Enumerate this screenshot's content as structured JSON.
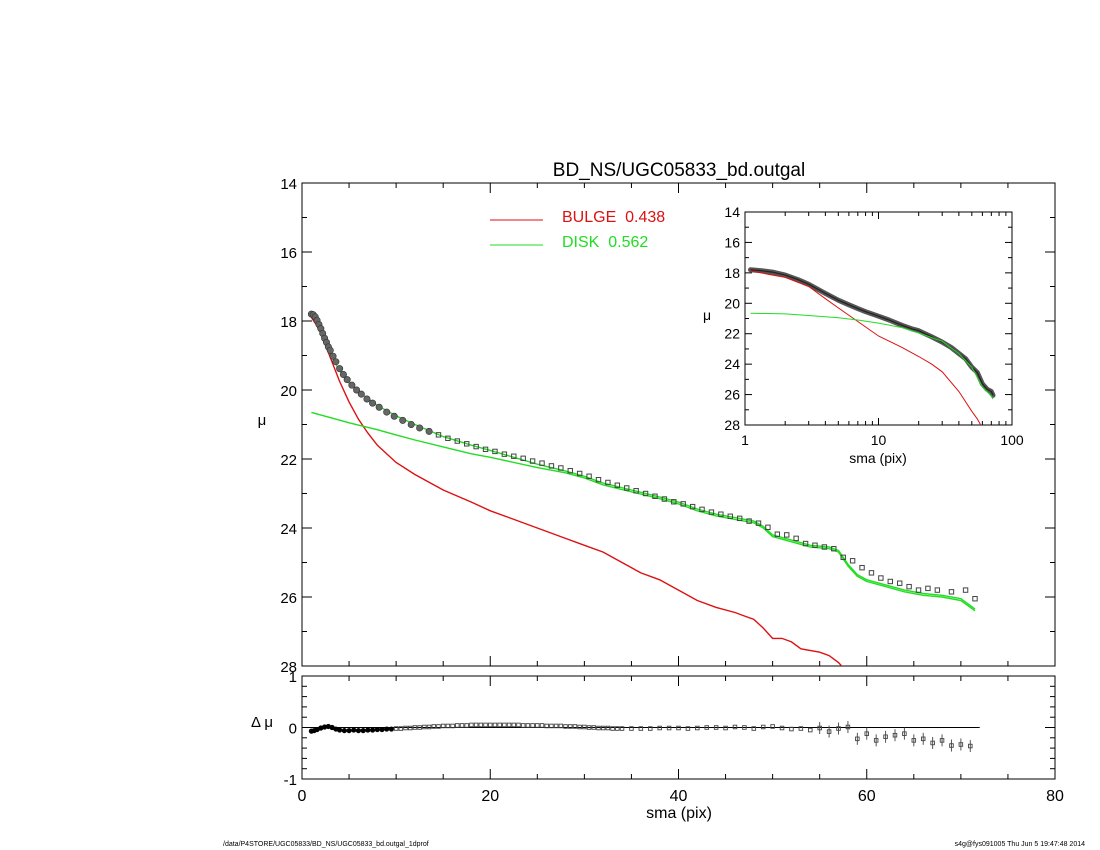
{
  "footer": {
    "left": "/data/P4STORE/UGC05833/BD_NS/UGC05833_bd.outgal_1dprof",
    "right": "s4g@fys091005  Thu Jun  5 19:47:48 2014"
  },
  "colors": {
    "data": "#555555",
    "bulge": "#dd1111",
    "disk": "#22dd22",
    "axis": "#000000"
  },
  "chart_data": [
    {
      "id": "main",
      "type": "scatter",
      "title": "BD_NS/UGC05833_bd.outgal",
      "xlabel": "",
      "ylabel": "μ",
      "xlim": [
        0,
        80
      ],
      "ylim": [
        28,
        14
      ],
      "y_reversed": true,
      "xticks": [
        "0",
        "20",
        "40",
        "60",
        "80"
      ],
      "yticks": [
        "14",
        "16",
        "18",
        "20",
        "22",
        "24",
        "26",
        "28"
      ],
      "legend_position": "top-center",
      "legend": [
        {
          "label": "BULGE  0.438",
          "color": "#dd1111"
        },
        {
          "label": "DISK  0.562",
          "color": "#22dd22"
        }
      ],
      "series": [
        {
          "name": "BULGE  0.438",
          "type": "line",
          "color": "#dd1111",
          "x": [
            1,
            1.5,
            2,
            2.5,
            3,
            4,
            5,
            6,
            7,
            8,
            10,
            12,
            15,
            18,
            20,
            22,
            25,
            28,
            30,
            32,
            34,
            36,
            38,
            40,
            42,
            44,
            46,
            47,
            48,
            49,
            50,
            51,
            52,
            53,
            55,
            56,
            57,
            58
          ],
          "y": [
            17.9,
            18.1,
            18.35,
            18.7,
            19.05,
            19.75,
            20.35,
            20.85,
            21.25,
            21.6,
            22.1,
            22.45,
            22.9,
            23.25,
            23.5,
            23.7,
            24.0,
            24.3,
            24.5,
            24.7,
            25.0,
            25.3,
            25.5,
            25.8,
            26.1,
            26.3,
            26.45,
            26.55,
            26.65,
            26.9,
            27.2,
            27.2,
            27.3,
            27.5,
            27.6,
            27.7,
            27.9,
            28.2
          ]
        },
        {
          "name": "DISK  0.562",
          "type": "line",
          "color": "#22dd22",
          "x": [
            1,
            3,
            5,
            8,
            10,
            12,
            15,
            18,
            20,
            25,
            28,
            30,
            32,
            35,
            38,
            40,
            42,
            44,
            46,
            48,
            49,
            50,
            52,
            54,
            56,
            57,
            58,
            59,
            60,
            62,
            64,
            66,
            68,
            70,
            71.5
          ],
          "y": [
            20.65,
            20.8,
            20.95,
            21.15,
            21.3,
            21.45,
            21.65,
            21.85,
            21.95,
            22.25,
            22.4,
            22.55,
            22.75,
            22.95,
            23.15,
            23.3,
            23.5,
            23.65,
            23.75,
            23.85,
            24.0,
            24.25,
            24.4,
            24.55,
            24.6,
            24.7,
            25.1,
            25.4,
            25.55,
            25.7,
            25.85,
            25.95,
            26.0,
            26.1,
            26.4
          ]
        },
        {
          "name": "",
          "type": "line",
          "color": "#22dd22",
          "role": "total model",
          "x": [
            1,
            1.5,
            2,
            2.5,
            3,
            4,
            5,
            6,
            7,
            8,
            10,
            12,
            15,
            18,
            20,
            25,
            28,
            30,
            32,
            35,
            38,
            40,
            42,
            44,
            46,
            48,
            49,
            50,
            52,
            54,
            56,
            57,
            58,
            59,
            60,
            62,
            64,
            66,
            68,
            70,
            71.5
          ],
          "y": [
            17.8,
            17.95,
            18.3,
            18.65,
            18.95,
            19.45,
            19.8,
            20.05,
            20.25,
            20.45,
            20.75,
            21.0,
            21.35,
            21.6,
            21.75,
            22.15,
            22.35,
            22.5,
            22.7,
            22.9,
            23.1,
            23.25,
            23.45,
            23.6,
            23.7,
            23.8,
            23.95,
            24.2,
            24.35,
            24.5,
            24.55,
            24.65,
            25.05,
            25.35,
            25.5,
            25.65,
            25.8,
            25.9,
            25.95,
            26.05,
            26.35
          ]
        },
        {
          "name": "",
          "type": "scatter",
          "color": "#555555",
          "role": "observed profile",
          "x": [
            1,
            1.2,
            1.4,
            1.6,
            1.8,
            2,
            2.2,
            2.4,
            2.6,
            2.8,
            3,
            3.3,
            3.6,
            4,
            4.4,
            4.8,
            5.3,
            5.8,
            6.3,
            6.9,
            7.5,
            8.2,
            9,
            9.8,
            10.7,
            11.6,
            12.5,
            13.5,
            14.5,
            15.5,
            16.5,
            17.5,
            18.5,
            19.5,
            20.5,
            21.5,
            22.5,
            23.5,
            24.5,
            25.5,
            26.5,
            27.5,
            28.5,
            29.5,
            30.5,
            31.5,
            32.5,
            33.5,
            34.5,
            35.5,
            36.5,
            37.5,
            38.5,
            39.5,
            40.5,
            41.5,
            42.5,
            43.5,
            44.5,
            45.5,
            46.5,
            47.5,
            48.5,
            49.5,
            50.5,
            51.5,
            52.5,
            53.5,
            54.5,
            55.5,
            56.5,
            57.5,
            58.5,
            59.5,
            60.5,
            61.5,
            62.5,
            63.5,
            64.5,
            65.5,
            66.5,
            67.5,
            69,
            70.5,
            71.5
          ],
          "y": [
            17.8,
            17.82,
            17.88,
            17.98,
            18.1,
            18.22,
            18.36,
            18.5,
            18.62,
            18.75,
            18.85,
            19.02,
            19.18,
            19.38,
            19.55,
            19.7,
            19.86,
            20.0,
            20.12,
            20.26,
            20.38,
            20.5,
            20.64,
            20.76,
            20.88,
            21.0,
            21.1,
            21.2,
            21.3,
            21.4,
            21.48,
            21.56,
            21.64,
            21.72,
            21.78,
            21.86,
            21.92,
            21.98,
            22.06,
            22.12,
            22.2,
            22.26,
            22.34,
            22.42,
            22.5,
            22.6,
            22.68,
            22.76,
            22.84,
            22.92,
            23.0,
            23.08,
            23.16,
            23.24,
            23.3,
            23.38,
            23.46,
            23.54,
            23.6,
            23.66,
            23.72,
            23.8,
            23.86,
            23.98,
            24.18,
            24.2,
            24.3,
            24.45,
            24.5,
            24.55,
            24.6,
            24.85,
            24.95,
            25.15,
            25.3,
            25.45,
            25.55,
            25.6,
            25.7,
            25.8,
            25.75,
            25.8,
            25.85,
            25.8,
            26.05
          ]
        }
      ],
      "inset": {
        "type": "line",
        "xlabel": "sma (pix)",
        "ylabel": "μ",
        "x_scale": "log",
        "xlim": [
          1,
          100
        ],
        "ylim": [
          28,
          14
        ],
        "xticks": [
          "1",
          "10",
          "100"
        ],
        "yticks": [
          "14",
          "16",
          "18",
          "20",
          "22",
          "24",
          "26",
          "28"
        ],
        "series": [
          {
            "name": "",
            "role": "observed profile",
            "color": "#555555",
            "x": [
              1.1,
              1.3,
              1.6,
              2,
              2.5,
              3,
              4,
              5,
              6,
              7,
              8,
              10,
              12,
              15,
              18,
              20,
              25,
              30,
              35,
              40,
              45,
              50,
              55,
              60,
              65,
              70,
              72
            ],
            "y": [
              17.8,
              17.85,
              17.95,
              18.15,
              18.45,
              18.75,
              19.35,
              19.8,
              20.1,
              20.35,
              20.55,
              20.85,
              21.1,
              21.45,
              21.7,
              21.8,
              22.2,
              22.55,
              22.9,
              23.3,
              23.65,
              24.2,
              24.55,
              25.3,
              25.65,
              25.8,
              26.05
            ]
          },
          {
            "name": "BULGE  0.438",
            "color": "#dd1111",
            "x": [
              1.1,
              1.5,
              2,
              3,
              4,
              5,
              7,
              10,
              15,
              20,
              25,
              30,
              40,
              50,
              55,
              60
            ],
            "y": [
              17.85,
              18.1,
              18.3,
              18.9,
              19.7,
              20.3,
              21.2,
              22.15,
              22.9,
              23.5,
              24.0,
              24.5,
              25.8,
              27.1,
              27.6,
              28.2
            ]
          },
          {
            "name": "DISK  0.562",
            "color": "#22dd22",
            "x": [
              1.1,
              2,
              3,
              5,
              7,
              10,
              15,
              20,
              30,
              40,
              50,
              60,
              70,
              72
            ],
            "y": [
              20.65,
              20.7,
              20.8,
              20.95,
              21.1,
              21.3,
              21.6,
              21.95,
              22.5,
              23.3,
              24.2,
              25.5,
              26.1,
              26.3
            ]
          }
        ]
      }
    },
    {
      "id": "residual",
      "type": "scatter",
      "title": "",
      "xlabel": "sma (pix)",
      "ylabel": "Δ μ",
      "xlim": [
        0,
        80
      ],
      "ylim": [
        -1,
        1
      ],
      "xticks": [
        "0",
        "20",
        "40",
        "60",
        "80"
      ],
      "yticks": [
        "1",
        "0",
        "-1"
      ],
      "reference_line": {
        "y": 0,
        "x": [
          0,
          72
        ]
      },
      "series": [
        {
          "name": "",
          "color": "#000000",
          "x": [
            1,
            1.3,
            1.6,
            2,
            2.4,
            2.8,
            3.2,
            3.6,
            4,
            4.5,
            5,
            5.5,
            6,
            6.5,
            7,
            7.5,
            8,
            8.5,
            9,
            9.5,
            10,
            10.5,
            11,
            11.5,
            12,
            12.5,
            13,
            13.5,
            14,
            14.5,
            15,
            15.5,
            16,
            16.5,
            17,
            17.5,
            18,
            18.5,
            19,
            19.5,
            20,
            20.5,
            21,
            21.5,
            22,
            22.5,
            23,
            23.5,
            24,
            24.5,
            25,
            25.5,
            26,
            26.5,
            27,
            27.5,
            28,
            28.5,
            29,
            29.5,
            30,
            30.5,
            31,
            31.5,
            32,
            32.5,
            33,
            33.5,
            34,
            35,
            36,
            37,
            38,
            39,
            40,
            41,
            42,
            43,
            44,
            45,
            46,
            47,
            48,
            49,
            50,
            51,
            52,
            53,
            54,
            55,
            56,
            57,
            58,
            59,
            60,
            61,
            62,
            63,
            64,
            65,
            66,
            67,
            68,
            69,
            70,
            71
          ],
          "y": [
            -0.07,
            -0.06,
            -0.04,
            -0.01,
            0.01,
            0.02,
            0.0,
            -0.03,
            -0.05,
            -0.06,
            -0.06,
            -0.05,
            -0.06,
            -0.06,
            -0.05,
            -0.05,
            -0.04,
            -0.04,
            -0.03,
            -0.03,
            -0.02,
            -0.02,
            -0.01,
            -0.01,
            0.0,
            0.0,
            0.01,
            0.01,
            0.02,
            0.02,
            0.03,
            0.03,
            0.03,
            0.04,
            0.04,
            0.04,
            0.05,
            0.05,
            0.05,
            0.05,
            0.05,
            0.05,
            0.05,
            0.05,
            0.05,
            0.05,
            0.05,
            0.04,
            0.04,
            0.04,
            0.04,
            0.04,
            0.03,
            0.03,
            0.03,
            0.03,
            0.02,
            0.02,
            0.02,
            0.01,
            0.01,
            0.0,
            0.0,
            -0.01,
            -0.01,
            -0.01,
            -0.02,
            -0.02,
            -0.02,
            -0.02,
            -0.02,
            -0.02,
            -0.01,
            -0.01,
            -0.01,
            -0.02,
            -0.01,
            0.0,
            0.0,
            -0.01,
            0.01,
            0.0,
            -0.02,
            0.01,
            0.02,
            -0.01,
            -0.03,
            -0.02,
            -0.05,
            -0.01,
            -0.08,
            -0.02,
            0.01,
            -0.22,
            -0.12,
            -0.25,
            -0.18,
            -0.15,
            -0.12,
            -0.25,
            -0.22,
            -0.3,
            -0.25,
            -0.35,
            -0.33,
            -0.36
          ]
        }
      ]
    }
  ]
}
